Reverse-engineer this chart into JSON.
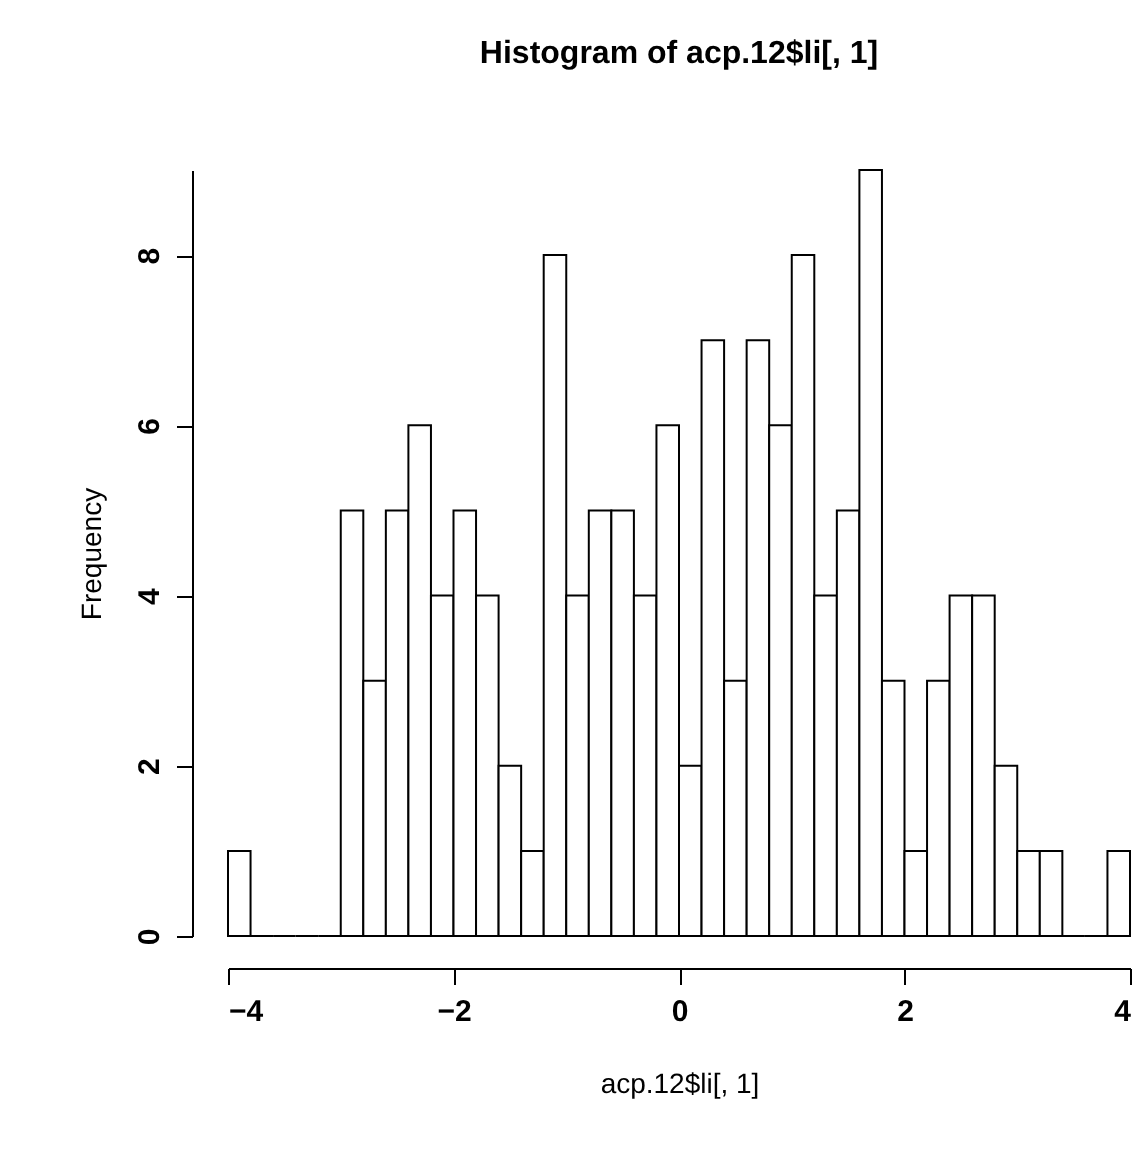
{
  "chart_data": {
    "type": "histogram",
    "title": "Histogram of acp.12$li[, 1]",
    "xlabel": "acp.12$li[, 1]",
    "ylabel": "Frequency",
    "bins": [
      -4.0,
      -3.8,
      -3.6,
      -3.4,
      -3.2,
      -3.0,
      -2.8,
      -2.6,
      -2.4,
      -2.2,
      -2.0,
      -1.8,
      -1.6,
      -1.4,
      -1.2,
      -1.0,
      -0.8,
      -0.6,
      -0.4,
      -0.2,
      0.0,
      0.2,
      0.4,
      0.6,
      0.8,
      1.0,
      1.2,
      1.4,
      1.6,
      1.8,
      2.0,
      2.2,
      2.4,
      2.6,
      2.8,
      3.0,
      3.2,
      3.4,
      3.6,
      3.8,
      4.0
    ],
    "values": [
      1,
      0,
      0,
      0,
      0,
      5,
      3,
      5,
      6,
      4,
      5,
      4,
      2,
      1,
      8,
      4,
      5,
      5,
      4,
      6,
      2,
      7,
      3,
      7,
      6,
      8,
      4,
      5,
      9,
      3,
      1,
      3,
      4,
      4,
      2,
      1,
      1,
      0,
      0,
      1
    ],
    "xlim": [
      -4,
      4
    ],
    "xticks": [
      -4,
      -2,
      0,
      2,
      4
    ],
    "ylim": [
      0,
      9
    ],
    "yticks": [
      0,
      2,
      4,
      6,
      8
    ],
    "grid": false
  }
}
